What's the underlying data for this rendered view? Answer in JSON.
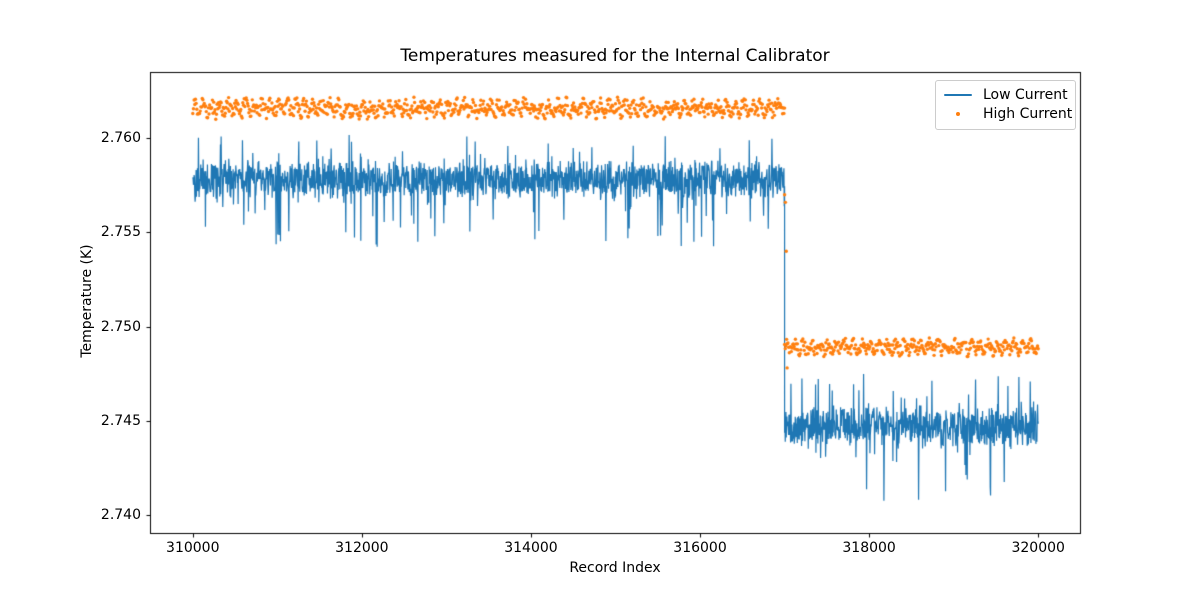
{
  "figure": {
    "background": "#ffffff",
    "spine_color": "#000000"
  },
  "chart_data": {
    "type": "line+scatter",
    "title": "Temperatures measured for the Internal Calibrator",
    "xlabel": "Record Index",
    "ylabel": "Temperature (K)",
    "xlim": [
      309500,
      320500
    ],
    "ylim": [
      2.739,
      2.7635
    ],
    "grid": false,
    "x_ticks": {
      "values": [
        310000,
        312000,
        314000,
        316000,
        318000,
        320000
      ],
      "labels": [
        "310000",
        "312000",
        "314000",
        "316000",
        "318000",
        "320000"
      ]
    },
    "y_ticks": {
      "values": [
        2.74,
        2.745,
        2.75,
        2.755,
        2.76
      ],
      "labels": [
        "2.740",
        "2.745",
        "2.750",
        "2.755",
        "2.760"
      ]
    },
    "legend": {
      "position": "upper right",
      "entries": [
        {
          "label": "Low Current",
          "color": "#1f77b4",
          "marker": "line"
        },
        {
          "label": "High Current",
          "color": "#ff7f0e",
          "marker": "dot"
        }
      ]
    },
    "series": [
      {
        "name": "Low Current",
        "type": "line",
        "color": "#1f77b4",
        "segments": [
          {
            "x_start": 310000,
            "x_end": 317000,
            "n_records": 7000,
            "mean": 2.7578,
            "band": 0.0011,
            "spike_down": 2.7542,
            "spike_up": 2.7602
          },
          {
            "x_start": 317000,
            "x_end": 320000,
            "n_records": 3000,
            "mean": 2.7447,
            "band": 0.0011,
            "spike_down": 2.7407,
            "spike_up": 2.7476
          }
        ]
      },
      {
        "name": "High Current",
        "type": "scatter",
        "color": "#ff7f0e",
        "segments": [
          {
            "x_start": 310000,
            "x_end": 317000,
            "n_records": 7000,
            "mean": 2.7616,
            "band": 0.0006
          },
          {
            "x_start": 317000,
            "x_end": 320000,
            "n_records": 3000,
            "mean": 2.7489,
            "band": 0.0005
          }
        ],
        "transition_points": [
          {
            "x": 317000,
            "y": 2.757
          },
          {
            "x": 317010,
            "y": 2.7566
          },
          {
            "x": 317020,
            "y": 2.754
          },
          {
            "x": 317030,
            "y": 2.7478
          }
        ]
      }
    ]
  }
}
